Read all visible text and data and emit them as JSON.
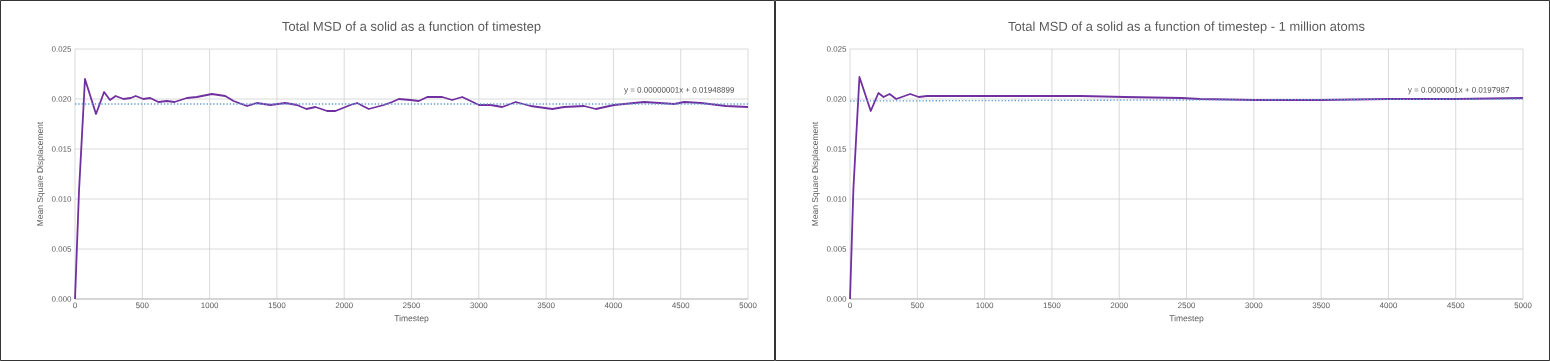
{
  "chart_data": [
    {
      "type": "line",
      "title": "Total MSD of a solid as a function of timestep",
      "xlabel": "Timestep",
      "ylabel": "Mean Square Displacement",
      "xlim": [
        0,
        5000
      ],
      "xticks": [
        0,
        500,
        1000,
        1500,
        2000,
        2500,
        3000,
        3500,
        4000,
        4500,
        5000
      ],
      "ylim": [
        0,
        0.025
      ],
      "yticks": [
        {
          "value": 0,
          "label": "0.000"
        },
        {
          "value": 0.005,
          "label": "0.005"
        },
        {
          "value": 0.01,
          "label": "0.010"
        },
        {
          "value": 0.015,
          "label": "0.015"
        },
        {
          "value": 0.02,
          "label": "0.020"
        },
        {
          "value": 0.025,
          "label": "0.025"
        }
      ],
      "grid": true,
      "annotations": [
        "y = 0.00000001x + 0.01948899"
      ],
      "series": [
        {
          "color": "#7030a0",
          "line_style": "solid",
          "x": [
            0,
            30,
            74,
            156,
            216,
            260,
            302,
            360,
            414,
            451,
            508,
            558,
            620,
            682,
            739,
            831,
            905,
            1017,
            1116,
            1178,
            1278,
            1351,
            1451,
            1563,
            1649,
            1719,
            1786,
            1873,
            1935,
            2046,
            2096,
            2182,
            2294,
            2356,
            2406,
            2492,
            2554,
            2617,
            2728,
            2802,
            2877,
            3001,
            3088,
            3174,
            3274,
            3385,
            3547,
            3633,
            3782,
            3869,
            4005,
            4229,
            4452,
            4527,
            4651,
            4837,
            5000
          ],
          "values": [
            0,
            0.0109,
            0.022,
            0.0185,
            0.0207,
            0.0199,
            0.0203,
            0.02,
            0.0201,
            0.0203,
            0.02,
            0.0201,
            0.0197,
            0.0198,
            0.0197,
            0.0201,
            0.0202,
            0.0205,
            0.0203,
            0.0198,
            0.0193,
            0.0196,
            0.0194,
            0.0196,
            0.0194,
            0.019,
            0.0192,
            0.0188,
            0.0188,
            0.0194,
            0.0196,
            0.019,
            0.0194,
            0.0197,
            0.02,
            0.0199,
            0.0198,
            0.0202,
            0.0202,
            0.0199,
            0.0202,
            0.0194,
            0.0194,
            0.0192,
            0.0197,
            0.0193,
            0.019,
            0.0192,
            0.0193,
            0.019,
            0.0194,
            0.0197,
            0.0195,
            0.0197,
            0.0196,
            0.0193,
            0.0192
          ]
        },
        {
          "type": "line",
          "color": "#5b9bd5",
          "line_style": "dotted",
          "x": [
            0,
            5000
          ],
          "values": [
            0.0195,
            0.0195
          ]
        }
      ]
    },
    {
      "type": "line",
      "title": "Total MSD of a solid as a function of timestep - 1 million atoms",
      "xlabel": "Timestep",
      "ylabel": "Mean Square Displacement",
      "xlim": [
        0,
        5000
      ],
      "xticks": [
        0,
        500,
        1000,
        1500,
        2000,
        2500,
        3000,
        3500,
        4000,
        4500,
        5000
      ],
      "ylim": [
        0,
        0.025
      ],
      "yticks": [
        {
          "value": 0,
          "label": "0.000"
        },
        {
          "value": 0.005,
          "label": "0.005"
        },
        {
          "value": 0.01,
          "label": "0.010"
        },
        {
          "value": 0.015,
          "label": "0.015"
        },
        {
          "value": 0.02,
          "label": "0.020"
        },
        {
          "value": 0.025,
          "label": "0.025"
        }
      ],
      "grid": true,
      "annotations": [
        "y = 0.0000001x + 0.0197987"
      ],
      "series": [
        {
          "color": "#7030a0",
          "line_style": "solid",
          "x": [
            0,
            25,
            70,
            154,
            211,
            249,
            294,
            343,
            447,
            511,
            572,
            796,
            1044,
            1293,
            1716,
            2040,
            2462,
            2600,
            3000,
            3500,
            4000,
            4500,
            5000
          ],
          "values": [
            0,
            0.011,
            0.0222,
            0.0188,
            0.0206,
            0.0202,
            0.0205,
            0.02,
            0.0205,
            0.0202,
            0.0203,
            0.0203,
            0.0203,
            0.0203,
            0.0203,
            0.0202,
            0.0201,
            0.02,
            0.0199,
            0.0199,
            0.02,
            0.02,
            0.0201
          ]
        },
        {
          "type": "line",
          "color": "#5b9bd5",
          "line_style": "dotted",
          "x": [
            0,
            5000
          ],
          "values": [
            0.0198,
            0.02
          ]
        }
      ]
    }
  ]
}
